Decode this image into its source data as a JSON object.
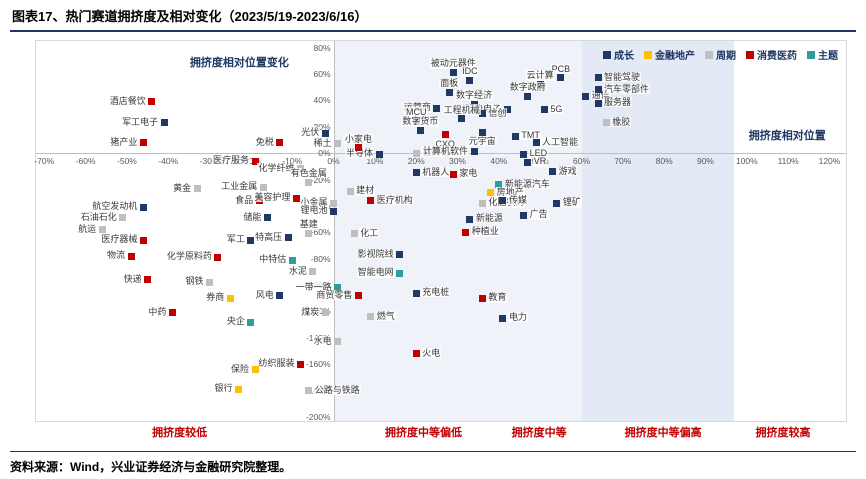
{
  "page": {
    "title": "图表17、热门赛道拥挤度及相对变化（2023/5/19-2023/6/16）",
    "source": "资料来源：Wind，兴业证券经济与金融研究院整理。"
  },
  "chart_data": {
    "type": "scatter",
    "x_axis": {
      "title": "拥挤度相对位置",
      "unit": "%",
      "min": -72,
      "max": 124,
      "ticks": [
        -70,
        -60,
        -50,
        -40,
        -30,
        -20,
        -10,
        0,
        10,
        20,
        30,
        40,
        50,
        60,
        70,
        80,
        90,
        100,
        110,
        120
      ]
    },
    "y_axis": {
      "title": "拥挤度相对位置变化",
      "unit": "%",
      "min": -203,
      "max": 85,
      "ticks": [
        80,
        60,
        40,
        20,
        0,
        -20,
        -40,
        -60,
        -80,
        -100,
        -120,
        -140,
        -160,
        -180,
        -200
      ]
    },
    "legend": [
      {
        "key": "g",
        "label": "成长",
        "color": "#1F3864"
      },
      {
        "key": "f",
        "label": "金融地产",
        "color": "#FFC000"
      },
      {
        "key": "c",
        "label": "周期",
        "color": "#BFBFBF"
      },
      {
        "key": "x",
        "label": "消费医药",
        "color": "#C00000"
      },
      {
        "key": "t",
        "label": "主题",
        "color": "#2E9D9D"
      }
    ],
    "bands": [
      {
        "from": 0,
        "to": 60,
        "color": "#F0F2F9"
      },
      {
        "from": 60,
        "to": 97,
        "color": "#E3E9F5"
      }
    ],
    "zones": [
      {
        "label": "拥挤度较低",
        "center": -37
      },
      {
        "label": "拥挤度中等偏低",
        "center": 22
      },
      {
        "label": "拥挤度中等",
        "center": 50
      },
      {
        "label": "拥挤度中等偏高",
        "center": 80
      },
      {
        "label": "拥挤度较高",
        "center": 109
      }
    ],
    "points": [
      [
        "被动元器件",
        "g",
        29,
        61,
        "t"
      ],
      [
        "IDC",
        "g",
        33,
        55,
        "t"
      ],
      [
        "PCB",
        "g",
        55,
        57,
        "t"
      ],
      [
        "云计算",
        "g",
        50,
        52,
        "t"
      ],
      [
        "面板",
        "g",
        28,
        46,
        "t"
      ],
      [
        "数字政府",
        "g",
        47,
        43,
        "t"
      ],
      [
        "通信",
        "g",
        61,
        43,
        "r"
      ],
      [
        "智能驾驶",
        "g",
        64,
        57,
        "r"
      ],
      [
        "汽车零部件",
        "g",
        64,
        48,
        "r"
      ],
      [
        "服务器",
        "g",
        64,
        38,
        "r"
      ],
      [
        "橡胶",
        "c",
        66,
        23,
        "r"
      ],
      [
        "酒店餐饮",
        "x",
        -44,
        39,
        "l"
      ],
      [
        "运营商",
        "g",
        25,
        34,
        "l"
      ],
      [
        "数字经济",
        "g",
        34,
        37,
        "t"
      ],
      [
        "消费电子",
        "g",
        42,
        33,
        "l"
      ],
      [
        "5G",
        "g",
        51,
        33,
        "r"
      ],
      [
        "军工电子",
        "g",
        -41,
        23,
        "l"
      ],
      [
        "MCU",
        "g",
        20,
        24,
        "t"
      ],
      [
        "信创",
        "g",
        36,
        30,
        "r"
      ],
      [
        "工程机械",
        "g",
        31,
        26,
        "t"
      ],
      [
        "光伏",
        "g",
        -2,
        15,
        "l"
      ],
      [
        "数字货币",
        "g",
        21,
        17,
        "t"
      ],
      [
        "CXO",
        "x",
        27,
        14,
        "b"
      ],
      [
        "元宇宙",
        "g",
        36,
        16,
        "b"
      ],
      [
        "TMT",
        "g",
        44,
        13,
        "r"
      ],
      [
        "人工智能",
        "g",
        49,
        8,
        "r"
      ],
      [
        "稀土",
        "c",
        1,
        7,
        "l"
      ],
      [
        "猪产业",
        "x",
        -46,
        8,
        "l"
      ],
      [
        "免税",
        "x",
        -13,
        8,
        "l"
      ],
      [
        "半导体",
        "g",
        11,
        -1,
        "l"
      ],
      [
        "基础化工",
        "c",
        20,
        0,
        "r"
      ],
      [
        "小家电",
        "x",
        6,
        4,
        "t"
      ],
      [
        "计算机软件",
        "g",
        34,
        1,
        "l"
      ],
      [
        "LED",
        "g",
        46,
        -1,
        "r"
      ],
      [
        "VR",
        "g",
        47,
        -7,
        "r"
      ],
      [
        "医疗服务",
        "x",
        -19,
        -6,
        "l"
      ],
      [
        "化学纤维",
        "c",
        -8,
        -12,
        "l"
      ],
      [
        "机器人",
        "g",
        20,
        -15,
        "r"
      ],
      [
        "家电",
        "x",
        29,
        -16,
        "r"
      ],
      [
        "游戏",
        "g",
        53,
        -14,
        "r"
      ],
      [
        "黄金",
        "c",
        -33,
        -27,
        "l"
      ],
      [
        "工业金属",
        "c",
        -17,
        -26,
        "l"
      ],
      [
        "有色金属",
        "c",
        -6,
        -22,
        "t"
      ],
      [
        "食品",
        "x",
        -18,
        -36,
        "l"
      ],
      [
        "美容护理",
        "x",
        -9,
        -34,
        "l"
      ],
      [
        "建材",
        "c",
        4,
        -29,
        "r"
      ],
      [
        "小金属",
        "c",
        0,
        -38,
        "l"
      ],
      [
        "医疗机构",
        "x",
        9,
        -36,
        "r"
      ],
      [
        "化肥农药",
        "c",
        36,
        -38,
        "r"
      ],
      [
        "新能源汽车",
        "t",
        40,
        -24,
        "r"
      ],
      [
        "房地产",
        "f",
        38,
        -30,
        "r"
      ],
      [
        "传媒",
        "g",
        41,
        -36,
        "r"
      ],
      [
        "锂矿",
        "g",
        54,
        -38,
        "r"
      ],
      [
        "航空发动机",
        "g",
        -46,
        -41,
        "l"
      ],
      [
        "石油石化",
        "c",
        -51,
        -49,
        "l"
      ],
      [
        "储能",
        "g",
        -16,
        -49,
        "l"
      ],
      [
        "锂电池",
        "g",
        0,
        -44,
        "l"
      ],
      [
        "新能源",
        "g",
        33,
        -50,
        "r"
      ],
      [
        "广告",
        "g",
        46,
        -47,
        "r"
      ],
      [
        "航运",
        "c",
        -56,
        -58,
        "l"
      ],
      [
        "医疗器械",
        "x",
        -46,
        -66,
        "l"
      ],
      [
        "军工",
        "g",
        -20,
        -66,
        "l"
      ],
      [
        "特高压",
        "g",
        -11,
        -64,
        "l"
      ],
      [
        "基建",
        "c",
        -6,
        -61,
        "t"
      ],
      [
        "化工",
        "c",
        5,
        -61,
        "r"
      ],
      [
        "种植业",
        "x",
        32,
        -60,
        "r"
      ],
      [
        "物流",
        "x",
        -49,
        -78,
        "l"
      ],
      [
        "化学原料药",
        "x",
        -28,
        -79,
        "l"
      ],
      [
        "中特估",
        "t",
        -10,
        -81,
        "l"
      ],
      [
        "影视院线",
        "g",
        16,
        -77,
        "l"
      ],
      [
        "水泥",
        "c",
        -5,
        -90,
        "l"
      ],
      [
        "快递",
        "x",
        -45,
        -96,
        "l"
      ],
      [
        "钢铁",
        "c",
        -30,
        -98,
        "l"
      ],
      [
        "智能电网",
        "t",
        16,
        -91,
        "l"
      ],
      [
        "券商",
        "f",
        -25,
        -110,
        "l"
      ],
      [
        "风电",
        "g",
        -13,
        -108,
        "l"
      ],
      [
        "一带一路",
        "t",
        1,
        -102,
        "l"
      ],
      [
        "商贸零售",
        "x",
        6,
        -108,
        "l"
      ],
      [
        "充电桩",
        "g",
        20,
        -106,
        "r"
      ],
      [
        "教育",
        "x",
        36,
        -110,
        "r"
      ],
      [
        "中药",
        "x",
        -39,
        -121,
        "l"
      ],
      [
        "煤炭",
        "c",
        -2,
        -121,
        "l"
      ],
      [
        "燃气",
        "c",
        9,
        -124,
        "r"
      ],
      [
        "电力",
        "g",
        41,
        -125,
        "r"
      ],
      [
        "央企",
        "t",
        -20,
        -128,
        "l"
      ],
      [
        "水电",
        "c",
        1,
        -143,
        "l"
      ],
      [
        "火电",
        "x",
        20,
        -152,
        "r"
      ],
      [
        "纺织服装",
        "x",
        -8,
        -160,
        "l"
      ],
      [
        "保险",
        "f",
        -19,
        -164,
        "l"
      ],
      [
        "银行",
        "f",
        -23,
        -179,
        "l"
      ],
      [
        "公路与铁路",
        "c",
        -6,
        -180,
        "r"
      ]
    ]
  }
}
